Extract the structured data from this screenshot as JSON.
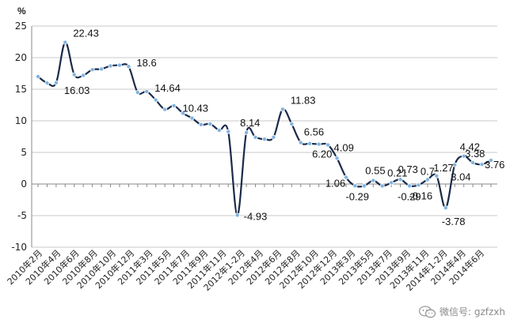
{
  "chart_data": {
    "type": "line",
    "title": "",
    "ylabel": "%",
    "xlabel": "",
    "ylim": [
      -10,
      25
    ],
    "yticks": [
      25,
      20,
      15,
      10,
      5,
      0,
      -5,
      -10
    ],
    "grid": true,
    "x_labels": [
      "2010年2月",
      "2010年4月",
      "2010年6月",
      "2010年8月",
      "2010年10月",
      "2010年12月",
      "2011年3月",
      "2011年5月",
      "2011年7月",
      "2011年9月",
      "2011年11月",
      "2012年1-2月",
      "2012年4月",
      "2012年6月",
      "2012年8月",
      "2012年10月",
      "2012年12月",
      "2013年3月",
      "2013年5月",
      "2013年7月",
      "2013年9月",
      "2013年11月",
      "2014年1-2月",
      "2014年4月",
      "2014年6月"
    ],
    "values": [
      17.0,
      16.0,
      16.03,
      22.43,
      17.3,
      17.2,
      18.1,
      18.2,
      18.7,
      18.8,
      18.6,
      14.5,
      14.64,
      13.3,
      11.8,
      12.4,
      11.2,
      10.43,
      9.4,
      9.5,
      8.5,
      8.3,
      -4.93,
      8.14,
      7.4,
      7.1,
      7.4,
      11.83,
      9.5,
      6.56,
      6.4,
      6.3,
      6.2,
      4.09,
      1.06,
      -0.29,
      -0.3,
      0.55,
      -0.3,
      0.21,
      0.73,
      -0.29,
      -0.16,
      0.7,
      1.27,
      -3.78,
      3.04,
      4.42,
      3.38,
      3.1,
      3.76
    ],
    "data_labels": [
      {
        "index": 2,
        "text": "16.03"
      },
      {
        "index": 3,
        "text": "22.43"
      },
      {
        "index": 10,
        "text": "18.6"
      },
      {
        "index": 12,
        "text": "14.64"
      },
      {
        "index": 17,
        "text": "10.43"
      },
      {
        "index": 22,
        "text": "-4.93"
      },
      {
        "index": 23,
        "text": "8.14"
      },
      {
        "index": 27,
        "text": "11.83"
      },
      {
        "index": 29,
        "text": "6.56"
      },
      {
        "index": 32,
        "text": "6.20"
      },
      {
        "index": 33,
        "text": "4.09"
      },
      {
        "index": 34,
        "text": "1.06"
      },
      {
        "index": 35,
        "text": "-0.29"
      },
      {
        "index": 37,
        "text": "0.55"
      },
      {
        "index": 39,
        "text": "0.21"
      },
      {
        "index": 40,
        "text": "0.73"
      },
      {
        "index": 41,
        "text": "-0.29"
      },
      {
        "index": 42,
        "text": "-0.16"
      },
      {
        "index": 43,
        "text": "0.7"
      },
      {
        "index": 44,
        "text": "1.27"
      },
      {
        "index": 45,
        "text": "-3.78"
      },
      {
        "index": 46,
        "text": "3.04"
      },
      {
        "index": 47,
        "text": "4.42"
      },
      {
        "index": 48,
        "text": "3.38"
      },
      {
        "index": 50,
        "text": "3.76"
      }
    ],
    "line_color": "#1a2a4a",
    "marker_color": "#7fb3e0",
    "grid_color": "#c8c8c8"
  },
  "watermark": {
    "text": "微信号: gzfzxh",
    "icon": "wechat-icon"
  }
}
